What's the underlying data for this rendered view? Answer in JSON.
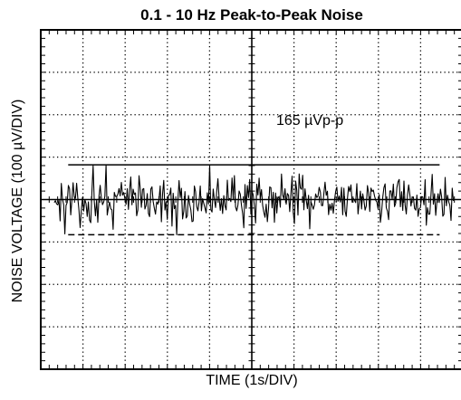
{
  "chart_data": {
    "type": "line",
    "title": "0.1 - 10 Hz Peak-to-Peak Noise",
    "xlabel": "TIME (1s/DIV)",
    "ylabel": "NOISE VOLTAGE (100 µV/DIV)",
    "x_divisions": 10,
    "y_divisions": 8,
    "grid": true,
    "grid_style": "dotted",
    "minor_ticks_per_division": 5,
    "xlim": [
      0,
      10
    ],
    "ylim": [
      -400,
      400
    ],
    "series": [
      {
        "kind": "noise",
        "color": "#000000",
        "mean": 0,
        "peak_to_peak": 165,
        "max": 82,
        "min": -83
      }
    ],
    "reference_lines": [
      {
        "value": 82,
        "style": "solid"
      },
      {
        "value": -83,
        "style": "dashed"
      }
    ],
    "annotation": {
      "text": "165 µVp-p"
    }
  }
}
